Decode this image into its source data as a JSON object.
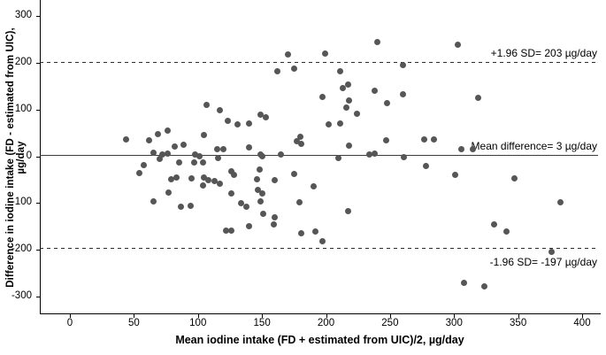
{
  "chart_data": {
    "type": "scatter",
    "title": "",
    "xlabel": "Mean iodine intake (FD + estimated from UIC)/2, µg/day",
    "ylabel": "Difference in iodine intake (FD - estimated from UIC), µg/day",
    "xlim": [
      -25,
      415
    ],
    "ylim": [
      -335,
      335
    ],
    "x_ticks": [
      0,
      50,
      100,
      150,
      200,
      250,
      300,
      350,
      400
    ],
    "y_ticks": [
      300,
      200,
      100,
      0,
      -100,
      -200,
      -300
    ],
    "grid": false,
    "legend_position": "none",
    "marker_color": "#565656",
    "axis_color": "#000000",
    "reference_lines": [
      {
        "label": "+1.96 SD= 203 µg/day",
        "value": 203,
        "style": "dashed",
        "label_position": "above"
      },
      {
        "label": "Mean difference= 3 µg/day",
        "value": 3,
        "style": "solid",
        "label_position": "above"
      },
      {
        "label": "-1.96 SD= -197 µg/day",
        "value": -197,
        "style": "dashed",
        "label_position": "below"
      }
    ],
    "points": [
      [
        44,
        36
      ],
      [
        62,
        34
      ],
      [
        69,
        48
      ],
      [
        65,
        8
      ],
      [
        58,
        -19
      ],
      [
        54,
        -36
      ],
      [
        65,
        -97
      ],
      [
        76,
        55
      ],
      [
        105,
        46
      ],
      [
        107,
        111
      ],
      [
        117,
        99
      ],
      [
        123,
        75
      ],
      [
        82,
        21
      ],
      [
        89,
        25
      ],
      [
        72,
        4
      ],
      [
        76,
        6
      ],
      [
        70,
        -6
      ],
      [
        98,
        4
      ],
      [
        101,
        0
      ],
      [
        85,
        -13
      ],
      [
        97,
        -13
      ],
      [
        104,
        -13
      ],
      [
        115,
        15
      ],
      [
        120,
        15
      ],
      [
        116,
        -4
      ],
      [
        140,
        19
      ],
      [
        149,
        4
      ],
      [
        126,
        -32
      ],
      [
        128,
        -40
      ],
      [
        148,
        -29
      ],
      [
        79,
        -50
      ],
      [
        83,
        -46
      ],
      [
        95,
        -48
      ],
      [
        105,
        -46
      ],
      [
        108,
        -52
      ],
      [
        113,
        -54
      ],
      [
        117,
        -59
      ],
      [
        104,
        -63
      ],
      [
        77,
        -78
      ],
      [
        126,
        -80
      ],
      [
        146,
        -50
      ],
      [
        147,
        -73
      ],
      [
        134,
        -101
      ],
      [
        138,
        -109
      ],
      [
        87,
        -109
      ],
      [
        94,
        -107
      ],
      [
        150,
        -80
      ],
      [
        149,
        -97
      ],
      [
        151,
        -124
      ],
      [
        149,
        90
      ],
      [
        153,
        84
      ],
      [
        131,
        69
      ],
      [
        140,
        71
      ],
      [
        202,
        69
      ],
      [
        211,
        71
      ],
      [
        180,
        42
      ],
      [
        177,
        32
      ],
      [
        181,
        27
      ],
      [
        218,
        23
      ],
      [
        150,
        0
      ],
      [
        165,
        4
      ],
      [
        210,
        -4
      ],
      [
        160,
        -52
      ],
      [
        175,
        -38
      ],
      [
        190,
        -65
      ],
      [
        179,
        -99
      ],
      [
        217,
        -118
      ],
      [
        122,
        -159
      ],
      [
        126,
        -159
      ],
      [
        140,
        -149
      ],
      [
        160,
        -130
      ],
      [
        159,
        -147
      ],
      [
        181,
        -166
      ],
      [
        192,
        -162
      ],
      [
        197,
        -182
      ],
      [
        247,
        34
      ],
      [
        277,
        36
      ],
      [
        284,
        36
      ],
      [
        234,
        4
      ],
      [
        238,
        6
      ],
      [
        261,
        -2
      ],
      [
        306,
        15
      ],
      [
        315,
        15
      ],
      [
        278,
        -21
      ],
      [
        301,
        -40
      ],
      [
        347,
        -48
      ],
      [
        383,
        -99
      ],
      [
        331,
        -147
      ],
      [
        341,
        -161
      ],
      [
        376,
        -204
      ],
      [
        308,
        -271
      ],
      [
        324,
        -279
      ],
      [
        240,
        245
      ],
      [
        303,
        239
      ],
      [
        260,
        195
      ],
      [
        238,
        141
      ],
      [
        260,
        132
      ],
      [
        248,
        113
      ],
      [
        319,
        126
      ],
      [
        224,
        92
      ],
      [
        170,
        218
      ],
      [
        199,
        220
      ],
      [
        162,
        182
      ],
      [
        175,
        187
      ],
      [
        211,
        182
      ],
      [
        213,
        147
      ],
      [
        217,
        153
      ],
      [
        197,
        128
      ],
      [
        218,
        120
      ],
      [
        216,
        105
      ]
    ]
  }
}
